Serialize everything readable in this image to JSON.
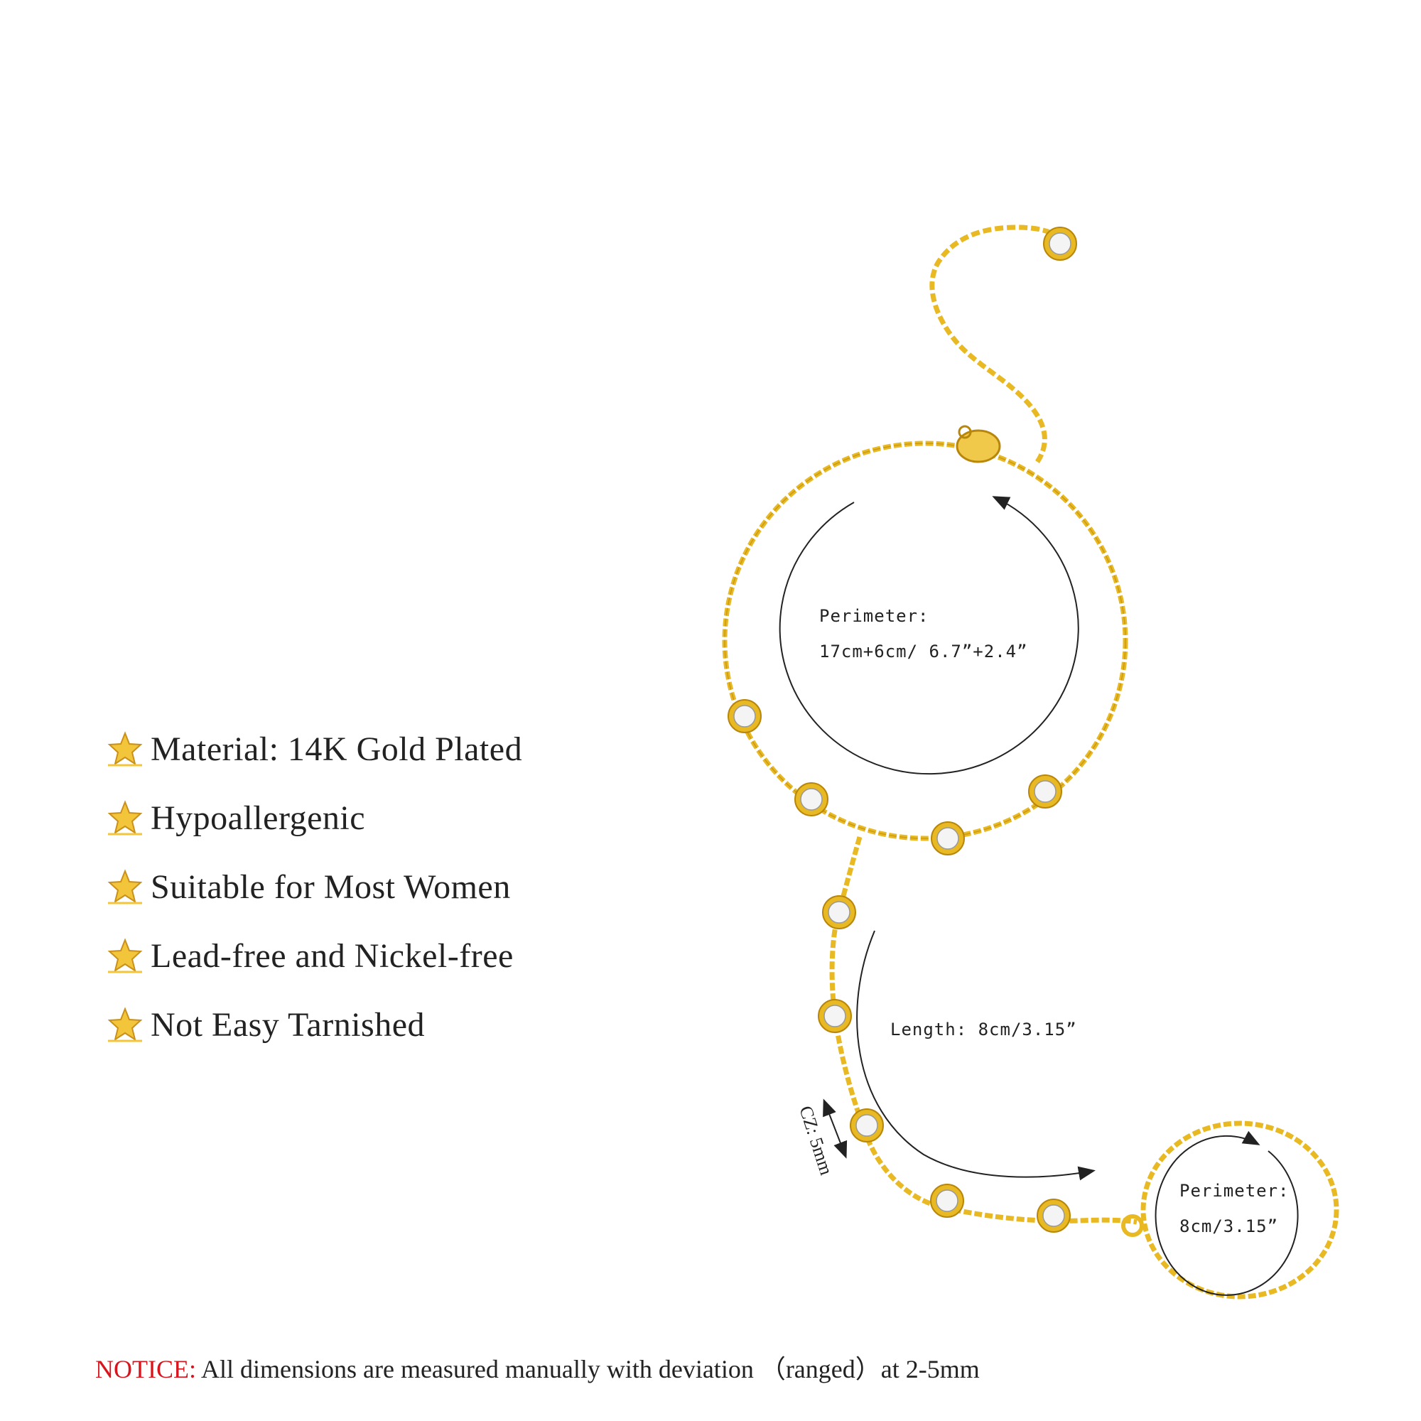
{
  "features": [
    {
      "label": "Material: 14K Gold Plated"
    },
    {
      "label": "Hypoallergenic"
    },
    {
      "label": "Suitable for Most Women"
    },
    {
      "label": "Lead-free and Nickel-free"
    },
    {
      "label": "Not Easy Tarnished"
    }
  ],
  "measurements": {
    "bracelet_perimeter_label": "Perimeter:",
    "bracelet_perimeter_value": "17cm+6cm/ 6.7”+2.4”",
    "length": "Length: 8cm/3.15”",
    "ring_perimeter_label": "Perimeter:",
    "ring_perimeter_value": "8cm/3.15”",
    "cz_size": "CZ: 5mm"
  },
  "notice": {
    "key": "NOTICE:",
    "text": "All dimensions are measured manually with deviation （ranged）at 2-5mm"
  },
  "colors": {
    "gold": "#e8b923",
    "gold_dark": "#b8860b",
    "notice_red": "#d8141c"
  },
  "icons": [
    "star-icon"
  ]
}
